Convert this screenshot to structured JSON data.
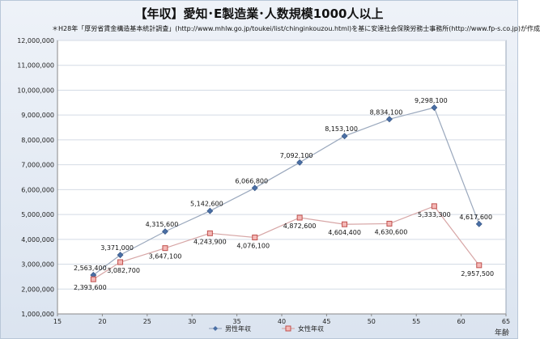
{
  "chart_data": {
    "type": "line",
    "title": "【年収】愛知･E製造業･人数規模1000人以上",
    "note": "＊H28年「厚労省賃金構造基本統計調査」(http://www.mhlw.go.jp/toukei/list/chinginkouzou.html)を基に安達社会保険労務士事務所(http://www.fp-s.co.jp)が作成",
    "xlabel": "年齢",
    "ylabel": "",
    "xlim": [
      15,
      65
    ],
    "ylim": [
      1000000,
      12000000
    ],
    "x_ticks": [
      15,
      20,
      25,
      30,
      35,
      40,
      45,
      50,
      55,
      60,
      65
    ],
    "y_ticks": [
      1000000,
      2000000,
      3000000,
      4000000,
      5000000,
      6000000,
      7000000,
      8000000,
      9000000,
      10000000,
      11000000,
      12000000
    ],
    "y_tick_labels": [
      "1,000,000",
      "2,000,000",
      "3,000,000",
      "4,000,000",
      "5,000,000",
      "6,000,000",
      "7,000,000",
      "8,000,000",
      "9,000,000",
      "10,000,000",
      "11,000,000",
      "12,000,000"
    ],
    "grid": true,
    "legend_position": "bottom",
    "series": [
      {
        "name": "男性年収",
        "color": "#4a6fa5",
        "marker": "diamond",
        "x": [
          19,
          22,
          27,
          32,
          37,
          42,
          47,
          52,
          57,
          62
        ],
        "values": [
          2563400,
          3371000,
          4315600,
          5142600,
          6066800,
          7092100,
          8153100,
          8834100,
          9298100,
          4617600
        ],
        "labels": [
          "2,563,400",
          "3,371,000",
          "4,315,600",
          "5,142,600",
          "6,066,800",
          "7,092,100",
          "8,153,100",
          "8,834,100",
          "9,298,100",
          "4,617,600"
        ]
      },
      {
        "name": "女性年収",
        "color": "#c0504d",
        "marker": "square",
        "x": [
          19,
          22,
          27,
          32,
          37,
          42,
          47,
          52,
          57,
          62
        ],
        "values": [
          2393600,
          3082700,
          3647100,
          4243900,
          4076100,
          4872600,
          4604400,
          4630600,
          5333300,
          2957500
        ],
        "labels": [
          "2,393,600",
          "3,082,700",
          "3,647,100",
          "4,243,900",
          "4,076,100",
          "4,872,600",
          "4,604,400",
          "4,630,600",
          "5,333,300",
          "2,957,500"
        ]
      }
    ]
  }
}
